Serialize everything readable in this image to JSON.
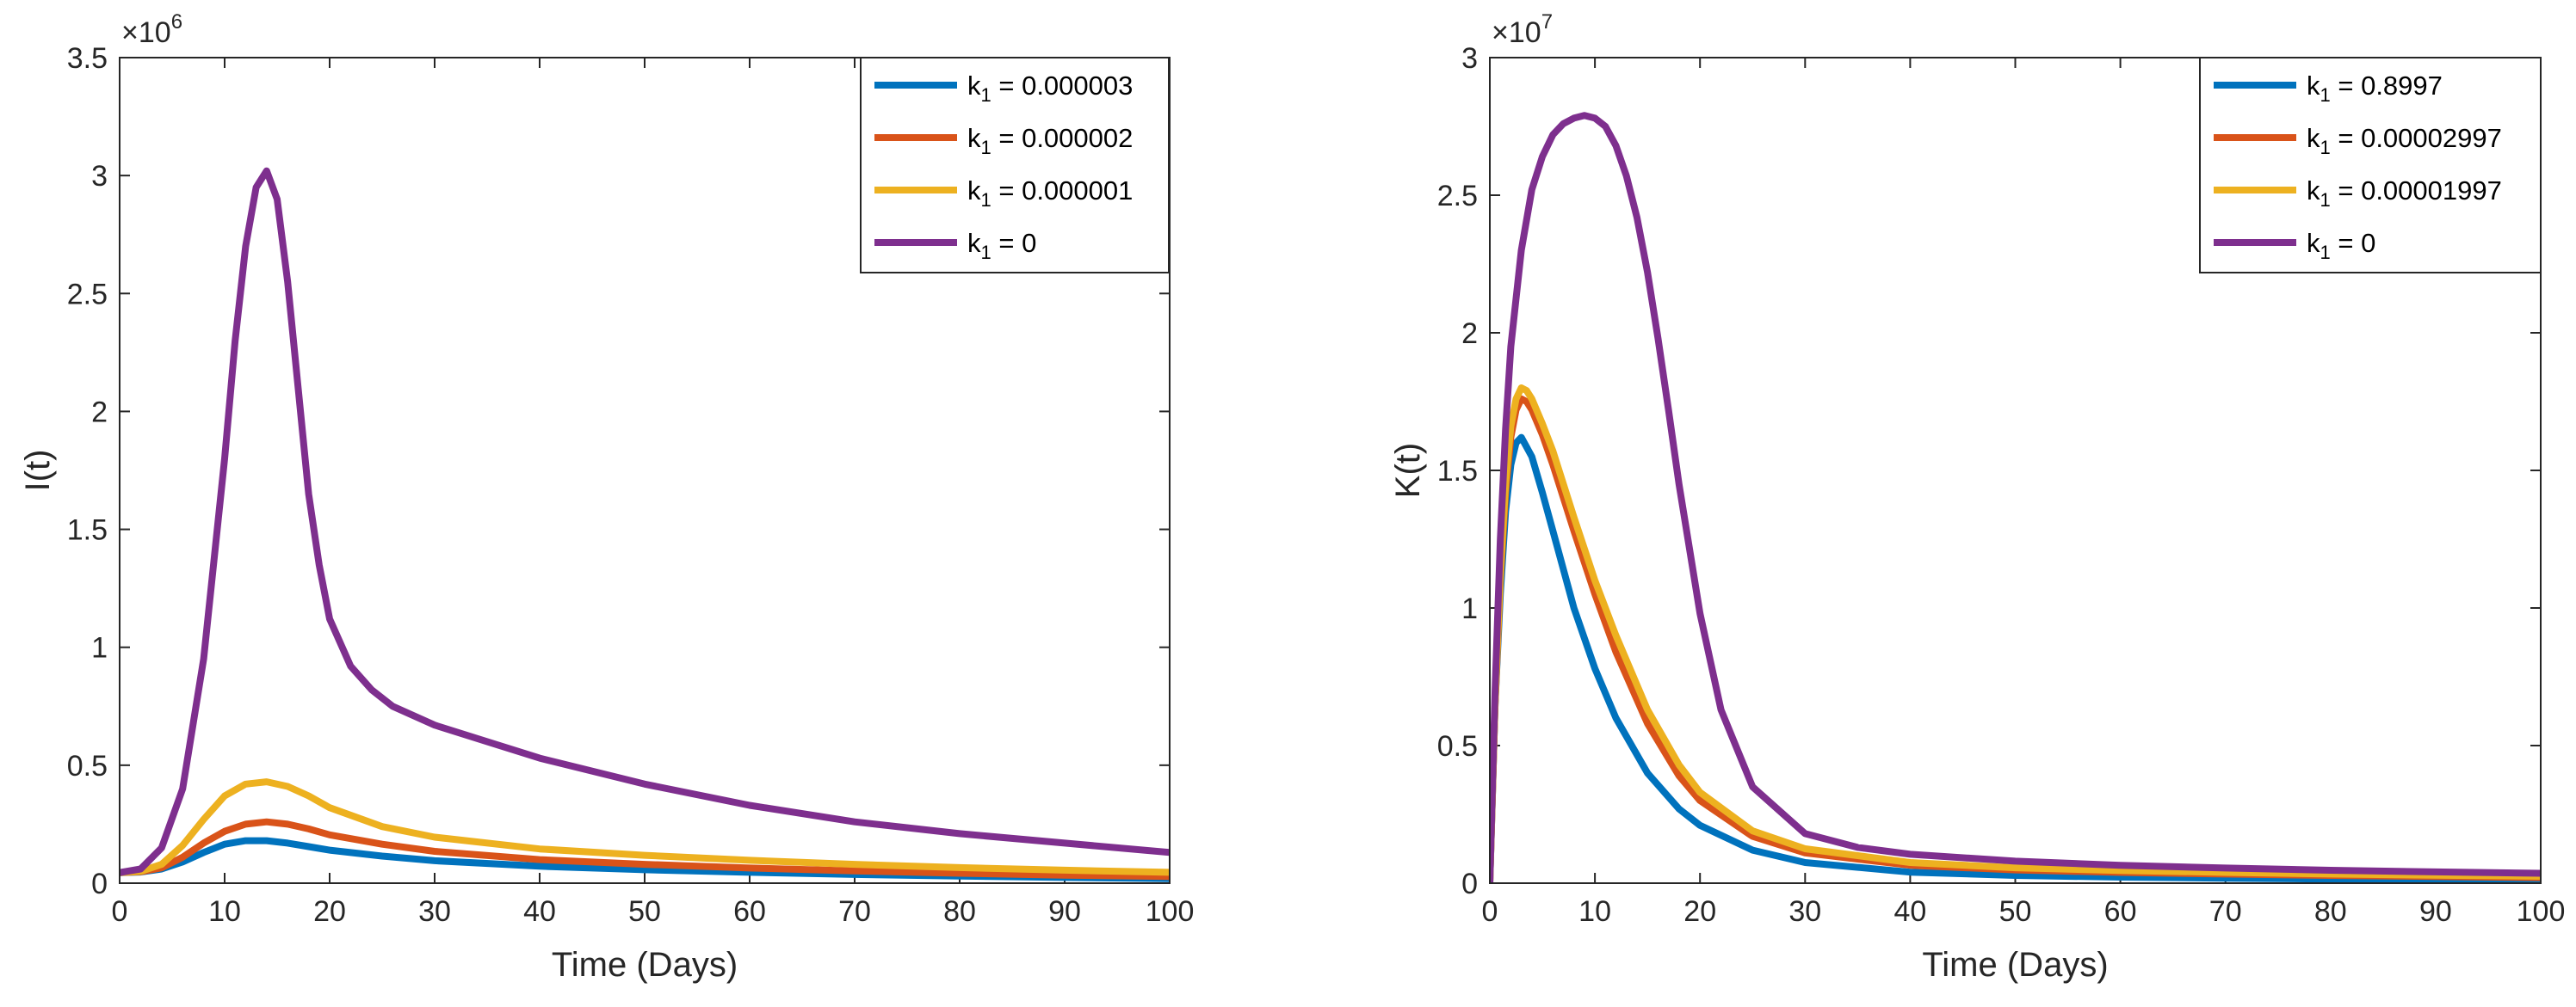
{
  "chart_data": [
    {
      "type": "line",
      "xlabel": "Time (Days)",
      "ylabel": "I(t)",
      "xlim": [
        0,
        100
      ],
      "ylim": [
        0,
        3.5
      ],
      "xticks": [
        "0",
        "10",
        "20",
        "30",
        "40",
        "50",
        "60",
        "70",
        "80",
        "90",
        "100"
      ],
      "yticks": [
        "0",
        "0.5",
        "1",
        "1.5",
        "2",
        "2.5",
        "3",
        "3.5"
      ],
      "exponent_base": "×10",
      "exponent_power": "6",
      "legend_position": "top-right",
      "series": [
        {
          "name": "k",
          "sub": "1",
          "value": " = 0.000003",
          "color": "#0072BD",
          "x": [
            0,
            2,
            4,
            6,
            8,
            10,
            12,
            14,
            16,
            18,
            20,
            25,
            30,
            40,
            50,
            60,
            70,
            80,
            90,
            100
          ],
          "y": [
            0.045,
            0.047,
            0.06,
            0.09,
            0.13,
            0.165,
            0.18,
            0.18,
            0.17,
            0.155,
            0.14,
            0.115,
            0.095,
            0.072,
            0.057,
            0.046,
            0.037,
            0.03,
            0.024,
            0.019
          ]
        },
        {
          "name": "k",
          "sub": "1",
          "value": " = 0.000002",
          "color": "#D95319",
          "x": [
            0,
            2,
            4,
            6,
            8,
            10,
            12,
            14,
            16,
            18,
            20,
            25,
            30,
            40,
            50,
            60,
            70,
            80,
            90,
            100
          ],
          "y": [
            0.045,
            0.048,
            0.065,
            0.11,
            0.17,
            0.22,
            0.25,
            0.26,
            0.25,
            0.23,
            0.205,
            0.165,
            0.135,
            0.1,
            0.08,
            0.064,
            0.052,
            0.042,
            0.034,
            0.028
          ]
        },
        {
          "name": "k",
          "sub": "1",
          "value": " = 0.000001",
          "color": "#EDB120",
          "x": [
            0,
            2,
            4,
            6,
            8,
            10,
            12,
            14,
            16,
            18,
            20,
            25,
            30,
            40,
            50,
            60,
            70,
            80,
            90,
            100
          ],
          "y": [
            0.045,
            0.05,
            0.08,
            0.16,
            0.27,
            0.37,
            0.42,
            0.43,
            0.41,
            0.37,
            0.32,
            0.24,
            0.195,
            0.145,
            0.118,
            0.097,
            0.08,
            0.066,
            0.055,
            0.046
          ]
        },
        {
          "name": "k",
          "sub": "1",
          "value": " = 0",
          "color": "#7E2F8E",
          "x": [
            0,
            2,
            4,
            6,
            8,
            10,
            11,
            12,
            13,
            14,
            15,
            16,
            17,
            18,
            19,
            20,
            22,
            24,
            26,
            30,
            35,
            40,
            50,
            60,
            70,
            80,
            90,
            100
          ],
          "y": [
            0.045,
            0.06,
            0.15,
            0.4,
            0.95,
            1.8,
            2.3,
            2.7,
            2.95,
            3.02,
            2.9,
            2.55,
            2.1,
            1.65,
            1.35,
            1.12,
            0.92,
            0.82,
            0.75,
            0.67,
            0.6,
            0.53,
            0.42,
            0.33,
            0.26,
            0.21,
            0.17,
            0.13
          ]
        }
      ]
    },
    {
      "type": "line",
      "xlabel": "Time (Days)",
      "ylabel": "K(t)",
      "xlim": [
        0,
        100
      ],
      "ylim": [
        0,
        3
      ],
      "xticks": [
        "0",
        "10",
        "20",
        "30",
        "40",
        "50",
        "60",
        "70",
        "80",
        "90",
        "100"
      ],
      "yticks": [
        "0",
        "0.5",
        "1",
        "1.5",
        "2",
        "2.5",
        "3"
      ],
      "exponent_base": "×10",
      "exponent_power": "7",
      "legend_position": "top-right",
      "series": [
        {
          "name": "k",
          "sub": "1",
          "value": " = 0.8997",
          "color": "#0072BD",
          "x": [
            0,
            0.5,
            1,
            1.5,
            2,
            2.5,
            3,
            4,
            5,
            6,
            8,
            10,
            12,
            15,
            18,
            20,
            25,
            30,
            40,
            50,
            60,
            70,
            80,
            90,
            100
          ],
          "y": [
            0,
            0.65,
            1.05,
            1.35,
            1.52,
            1.6,
            1.62,
            1.55,
            1.42,
            1.28,
            1.0,
            0.78,
            0.6,
            0.4,
            0.27,
            0.21,
            0.12,
            0.075,
            0.04,
            0.028,
            0.022,
            0.018,
            0.015,
            0.012,
            0.01
          ]
        },
        {
          "name": "k",
          "sub": "1",
          "value": " = 0.00002997",
          "color": "#D95319",
          "x": [
            0,
            0.5,
            1,
            1.5,
            2,
            2.5,
            3,
            3.5,
            4,
            5,
            6,
            8,
            10,
            12,
            15,
            18,
            20,
            25,
            30,
            40,
            50,
            60,
            70,
            80,
            90,
            100
          ],
          "y": [
            0,
            0.65,
            1.1,
            1.42,
            1.62,
            1.72,
            1.76,
            1.75,
            1.72,
            1.63,
            1.52,
            1.28,
            1.05,
            0.84,
            0.58,
            0.39,
            0.3,
            0.17,
            0.11,
            0.065,
            0.048,
            0.039,
            0.033,
            0.028,
            0.024,
            0.02
          ]
        },
        {
          "name": "k",
          "sub": "1",
          "value": " = 0.00001997",
          "color": "#EDB120",
          "x": [
            0,
            0.5,
            1,
            1.5,
            2,
            2.5,
            3,
            3.5,
            4,
            5,
            6,
            8,
            10,
            12,
            15,
            18,
            20,
            25,
            30,
            40,
            50,
            60,
            70,
            80,
            90,
            100
          ],
          "y": [
            0,
            0.66,
            1.12,
            1.45,
            1.66,
            1.76,
            1.8,
            1.79,
            1.76,
            1.67,
            1.57,
            1.33,
            1.1,
            0.9,
            0.63,
            0.43,
            0.33,
            0.19,
            0.125,
            0.075,
            0.056,
            0.046,
            0.039,
            0.033,
            0.029,
            0.025
          ]
        },
        {
          "name": "k",
          "sub": "1",
          "value": " = 0",
          "color": "#7E2F8E",
          "x": [
            0,
            0.5,
            1,
            1.5,
            2,
            3,
            4,
            5,
            6,
            7,
            8,
            9,
            10,
            11,
            12,
            13,
            14,
            15,
            16,
            17,
            18,
            20,
            22,
            25,
            30,
            35,
            40,
            50,
            60,
            70,
            80,
            90,
            100
          ],
          "y": [
            0,
            0.7,
            1.25,
            1.65,
            1.95,
            2.3,
            2.52,
            2.64,
            2.72,
            2.76,
            2.78,
            2.79,
            2.78,
            2.75,
            2.68,
            2.57,
            2.42,
            2.22,
            1.98,
            1.72,
            1.45,
            0.98,
            0.63,
            0.35,
            0.18,
            0.13,
            0.105,
            0.08,
            0.065,
            0.055,
            0.047,
            0.041,
            0.036
          ]
        }
      ]
    }
  ]
}
